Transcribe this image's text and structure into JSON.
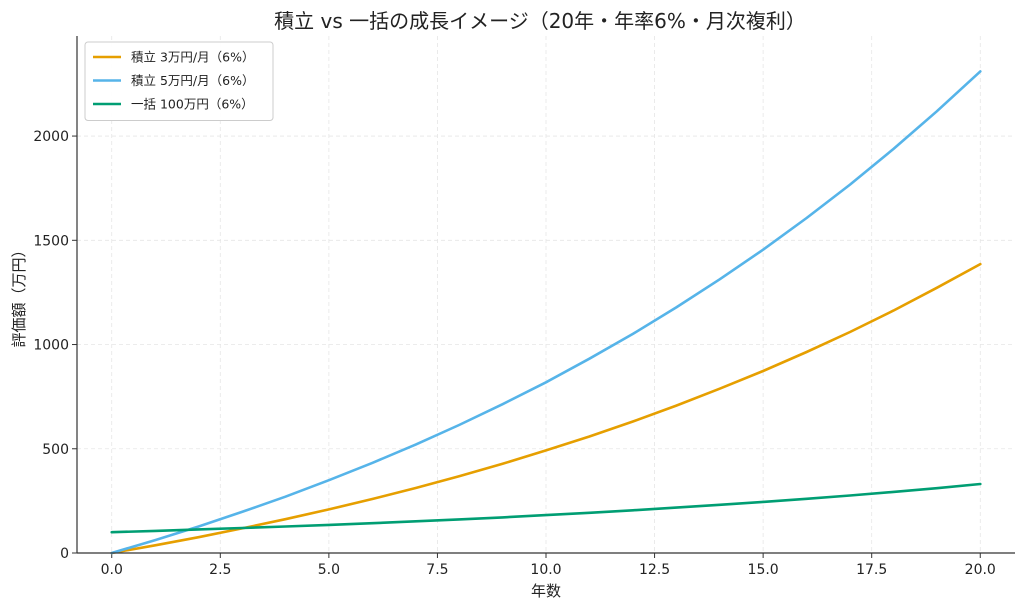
{
  "chart_data": {
    "type": "line",
    "title": "積立 vs 一括の成長イメージ（20年・年率6%・月次複利）",
    "xlabel": "年数",
    "ylabel": "評価額（万円）",
    "xlim": [
      -0.8,
      20.8
    ],
    "ylim": [
      0,
      2480
    ],
    "xticks": [
      0,
      2.5,
      5,
      7.5,
      10,
      12.5,
      15,
      17.5,
      20
    ],
    "xtick_labels": [
      "0.0",
      "2.5",
      "5.0",
      "7.5",
      "10.0",
      "12.5",
      "15.0",
      "17.5",
      "20.0"
    ],
    "yticks": [
      0,
      500,
      1000,
      1500,
      2000
    ],
    "ytick_labels": [
      "0",
      "500",
      "1000",
      "1500",
      "2000"
    ],
    "grid": true,
    "legend_position": "top-left",
    "x": [
      0,
      1,
      2,
      3,
      4,
      5,
      6,
      7,
      8,
      9,
      10,
      11,
      12,
      13,
      14,
      15,
      16,
      17,
      18,
      19,
      20
    ],
    "series": [
      {
        "name": "積立 3万円/月（6%）",
        "color": "#E69F00",
        "values": [
          0,
          37,
          76,
          118,
          162,
          209,
          259,
          312,
          368,
          428,
          492,
          559,
          631,
          707,
          788,
          873,
          964,
          1060,
          1163,
          1272,
          1386
        ]
      },
      {
        "name": "積立 5万円/月（6%）",
        "color": "#56B4E9",
        "values": [
          0,
          62,
          127,
          197,
          270,
          349,
          432,
          520,
          614,
          714,
          819,
          932,
          1051,
          1178,
          1313,
          1455,
          1607,
          1767,
          1938,
          2119,
          2310
        ]
      },
      {
        "name": "一括 100万円（6%）",
        "color": "#009E73",
        "values": [
          100,
          106,
          113,
          120,
          127,
          135,
          143,
          152,
          161,
          171,
          182,
          193,
          205,
          218,
          231,
          245,
          260,
          276,
          293,
          311,
          331
        ]
      }
    ]
  }
}
